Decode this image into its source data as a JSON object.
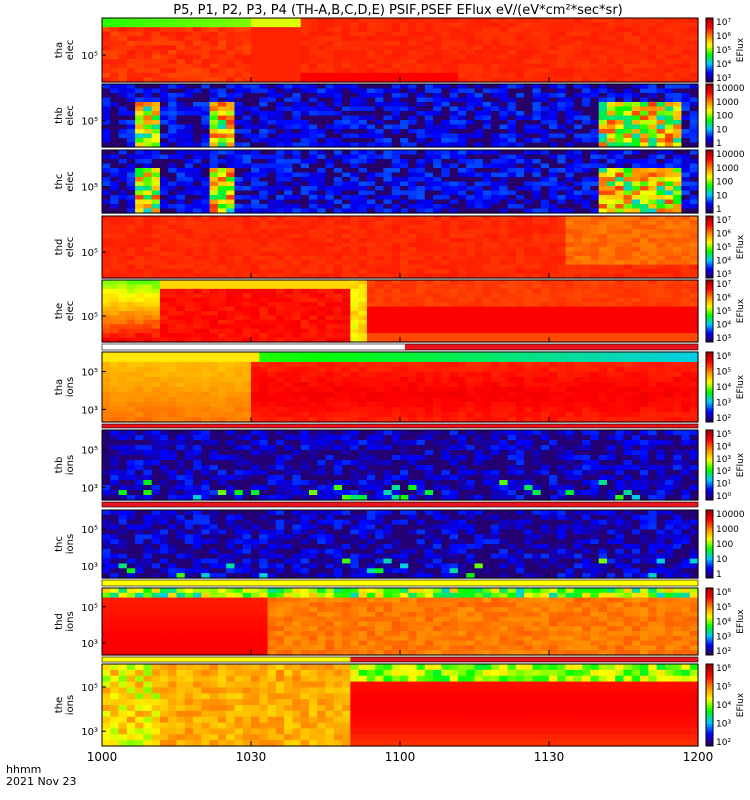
{
  "chart_data": {
    "type": "heatmap",
    "title": "P5, P1, P2, P3, P4 (TH-A,B,C,D,E) PSIF,PSEF EFlux eV/(eV*cm²*sec*sr)",
    "xaxis": {
      "tick_labels": [
        "1000",
        "1030",
        "1100",
        "1130",
        "1200"
      ],
      "range_minutes": [
        0,
        120
      ],
      "tick_minutes": [
        0,
        30,
        60,
        90,
        120
      ],
      "label_line1": "hhmm",
      "label_line2": "2021 Nov 23"
    },
    "panels": [
      {
        "name": "tha-elec",
        "label": [
          "tha",
          "elec"
        ],
        "y_ticks": [
          "10⁵"
        ],
        "cbar_ticks": [
          "10⁷",
          "10⁶",
          "10⁵",
          "10⁴",
          "10³"
        ],
        "cbar_label": "EFlux",
        "style": "hot_elec"
      },
      {
        "name": "thb-elec",
        "label": [
          "thb",
          "elec"
        ],
        "y_ticks": [
          "10⁵"
        ],
        "cbar_ticks": [
          "10000",
          "1000",
          "100",
          "10",
          "1"
        ],
        "cbar_label": "",
        "style": "noisy"
      },
      {
        "name": "thc-elec",
        "label": [
          "thc",
          "elec"
        ],
        "y_ticks": [
          "10⁵"
        ],
        "cbar_ticks": [
          "10000",
          "1000",
          "100",
          "10",
          "1"
        ],
        "cbar_label": "",
        "style": "noisy"
      },
      {
        "name": "thd-elec",
        "label": [
          "thd",
          "elec"
        ],
        "y_ticks": [
          "10⁵"
        ],
        "cbar_ticks": [
          "10⁷",
          "10⁶",
          "10⁵",
          "10⁴",
          "10³"
        ],
        "cbar_label": "EFlux",
        "style": "red_elec"
      },
      {
        "name": "the-elec",
        "label": [
          "the",
          "elec"
        ],
        "y_ticks": [
          "10⁵"
        ],
        "cbar_ticks": [
          "10⁷",
          "10⁶",
          "10⁵",
          "10⁴",
          "10³"
        ],
        "cbar_label": "EFlux",
        "style": "the_elec"
      },
      {
        "name": "tha-ions",
        "label": [
          "tha",
          "ions"
        ],
        "y_ticks": [
          "10⁵",
          "10³"
        ],
        "cbar_ticks": [
          "10⁶",
          "10⁵",
          "10⁴",
          "10³",
          "10²"
        ],
        "cbar_label": "EFlux",
        "style": "ions_a"
      },
      {
        "name": "thb-ions",
        "label": [
          "thb",
          "ions"
        ],
        "y_ticks": [
          "10⁵",
          "10³"
        ],
        "cbar_ticks": [
          "10⁵",
          "10⁴",
          "10³",
          "10²",
          "10¹",
          "10⁰"
        ],
        "cbar_label": "EFlux",
        "style": "noisy_ions"
      },
      {
        "name": "thc-ions",
        "label": [
          "thc",
          "ions"
        ],
        "y_ticks": [
          "10⁵",
          "10³"
        ],
        "cbar_ticks": [
          "10000",
          "1000",
          "100",
          "10",
          "1"
        ],
        "cbar_label": "",
        "style": "noisy_ions"
      },
      {
        "name": "thd-ions",
        "label": [
          "thd",
          "ions"
        ],
        "y_ticks": [
          "10⁵",
          "10³"
        ],
        "cbar_ticks": [
          "10⁶",
          "10⁵",
          "10⁴",
          "10³",
          "10²"
        ],
        "cbar_label": "EFlux",
        "style": "ions_d"
      },
      {
        "name": "the-ions",
        "label": [
          "the",
          "ions"
        ],
        "y_ticks": [
          "10⁵",
          "10³"
        ],
        "cbar_ticks": [
          "10⁶",
          "10⁵",
          "10⁴",
          "10³",
          "10²"
        ],
        "cbar_label": "EFlux",
        "style": "ions_e"
      }
    ],
    "mode_bars": [
      {
        "after_panel": "the-elec",
        "segments": [
          {
            "from_min": 0,
            "to_min": 61,
            "color": "#ffffff"
          },
          {
            "from_min": 61,
            "to_min": 120,
            "color": "#e8141e"
          }
        ]
      },
      {
        "after_panel": "tha-ions",
        "segments": [
          {
            "from_min": 0,
            "to_min": 120,
            "color": "#e8141e"
          }
        ]
      },
      {
        "after_panel": "thb-ions",
        "segments": [
          {
            "from_min": 0,
            "to_min": 120,
            "color": "#e8141e"
          }
        ]
      },
      {
        "after_panel": "thc-ions",
        "segments": [
          {
            "from_min": 0,
            "to_min": 120,
            "color": "#ffff00"
          }
        ]
      },
      {
        "after_panel": "thd-ions",
        "segments": [
          {
            "from_min": 0,
            "to_min": 50,
            "color": "#ffff00"
          },
          {
            "from_min": 50,
            "to_min": 120,
            "color": "#e8141e"
          }
        ]
      }
    ],
    "colorscale": [
      "#2d0050",
      "#0000ff",
      "#00c8ff",
      "#00ff00",
      "#ffff00",
      "#ff8800",
      "#ff0000",
      "#990000"
    ]
  }
}
